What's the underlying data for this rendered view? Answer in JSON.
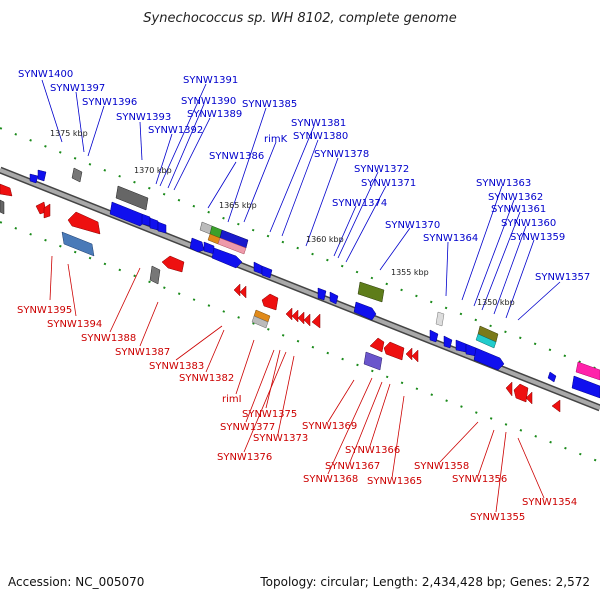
{
  "title": "Synechococcus sp. WH 8102, complete genome",
  "accession": "Accession: NC_005070",
  "summary": "Topology: circular; Length: 2,434,428 bp; Genes: 2,572",
  "colors": {
    "forward": "#0000dd",
    "reverse": "#dd0000",
    "backbone": "#888888",
    "tick": "#1a8a1a"
  },
  "scale_labels": [
    "1375 kbp",
    "1370 kbp",
    "1365 kbp",
    "1360 kbp",
    "1355 kbp",
    "1350 kbp"
  ],
  "forward_labels": [
    "SYNW1400",
    "SYNW1397",
    "SYNW1396",
    "SYNW1393",
    "SYNW1392",
    "SYNW1391",
    "SYNW1390",
    "SYNW1389",
    "SYNW1386",
    "SYNW1385",
    "rimK",
    "SYNW1381",
    "SYNW1380",
    "SYNW1378",
    "SYNW1372",
    "SYNW1371",
    "SYNW1374",
    "SYNW1370",
    "SYNW1364",
    "SYNW1363",
    "SYNW1362",
    "SYNW1361",
    "SYNW1360",
    "SYNW1359",
    "SYNW1357"
  ],
  "reverse_labels": [
    "SYNW1395",
    "SYNW1394",
    "SYNW1388",
    "SYNW1387",
    "SYNW1383",
    "SYNW1382",
    "rimI",
    "SYNW1375",
    "SYNW1377",
    "SYNW1373",
    "SYNW1376",
    "SYNW1369",
    "SYNW1366",
    "SYNW1367",
    "SYNW1368",
    "SYNW1365",
    "SYNW1358",
    "SYNW1356",
    "SYNW1355",
    "SYNW1354"
  ]
}
